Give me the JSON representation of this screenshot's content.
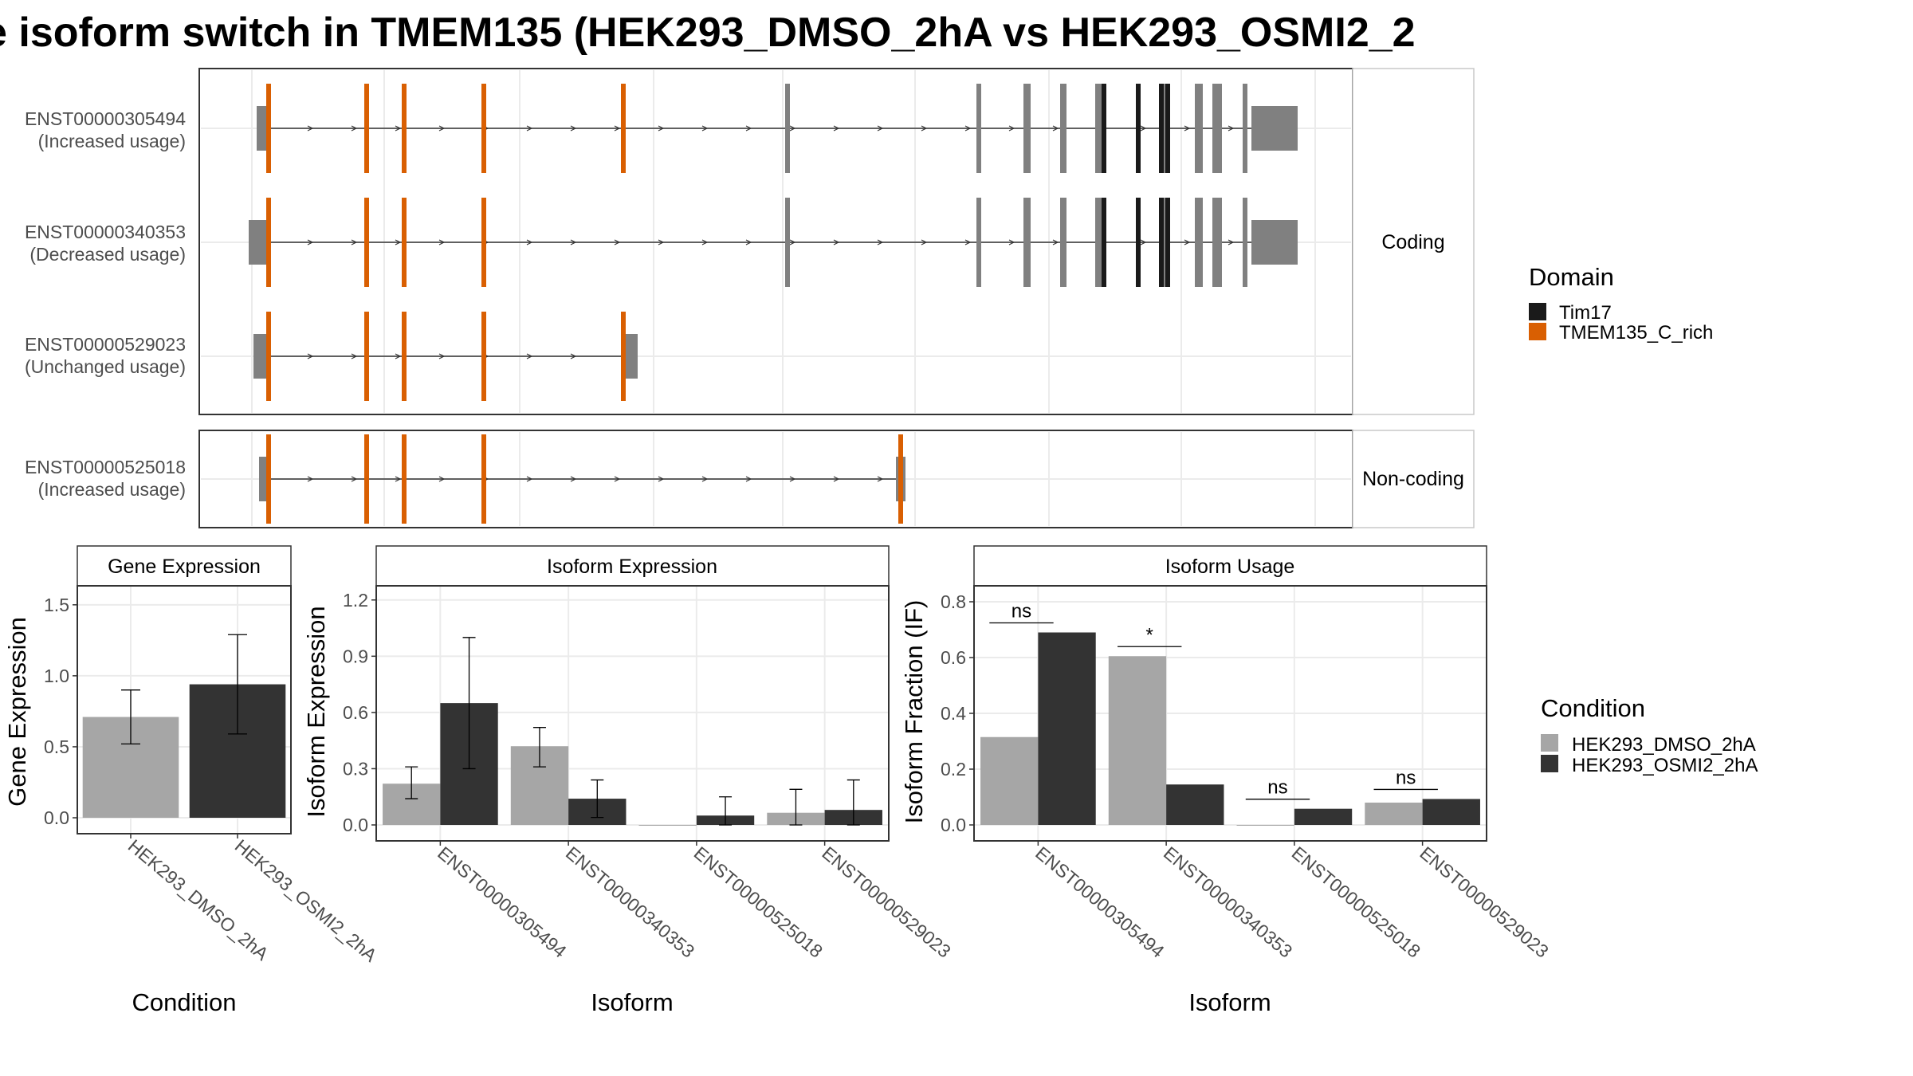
{
  "title": "e isoform switch in TMEM135 (HEK293_DMSO_2hA vs HEK293_OSMI2_2",
  "colors": {
    "exon": "#808080",
    "tim17": "#1a1a1a",
    "tmem_c_rich": "#d95f02",
    "dmso": "#a6a6a6",
    "osmi2": "#333333",
    "panel_border": "#333333",
    "strip_bg": "#ffffff",
    "grid": "#ebebeb"
  },
  "structure": {
    "coding_label": "Coding",
    "noncoding_label": "Non-coding",
    "transcripts": [
      {
        "id": "ENST00000305494",
        "usage": "(Increased usage)",
        "group": "coding"
      },
      {
        "id": "ENST00000340353",
        "usage": "(Decreased usage)",
        "group": "coding"
      },
      {
        "id": "ENST00000529023",
        "usage": "(Unchanged usage)",
        "group": "coding"
      },
      {
        "id": "ENST00000525018",
        "usage": "(Increased usage)",
        "group": "noncoding"
      }
    ],
    "legend_title": "Domain",
    "legend_items": [
      {
        "label": "Tim17",
        "color": "#1a1a1a"
      },
      {
        "label": "TMEM135_C_rich",
        "color": "#d95f02"
      }
    ]
  },
  "chart_data": [
    {
      "type": "bar",
      "title": "Gene Expression",
      "xlabel": "Condition",
      "ylabel": "Gene Expression",
      "ylim": [
        0,
        1.6
      ],
      "yticks": [
        "0.0",
        "0.5",
        "1.0",
        "1.5"
      ],
      "categories": [
        "HEK293_DMSO_2hA",
        "HEK293_OSMI2_2hA"
      ],
      "values": [
        0.71,
        0.94
      ],
      "err_low": [
        0.52,
        0.59
      ],
      "err_high": [
        0.9,
        1.29
      ]
    },
    {
      "type": "bar",
      "title": "Isoform Expression",
      "xlabel": "Isoform",
      "ylabel": "Isoform Expression",
      "ylim": [
        0,
        1.25
      ],
      "yticks": [
        "0.0",
        "0.3",
        "0.6",
        "0.9",
        "1.2"
      ],
      "categories": [
        "ENST00000305494",
        "ENST00000340353",
        "ENST00000525018",
        "ENST00000529023"
      ],
      "series": [
        {
          "name": "HEK293_DMSO_2hA",
          "values": [
            0.22,
            0.42,
            0.0,
            0.065
          ],
          "err_low": [
            0.14,
            0.31,
            0.0,
            0.0
          ],
          "err_high": [
            0.31,
            0.52,
            0.0,
            0.19
          ]
        },
        {
          "name": "HEK293_OSMI2_2hA",
          "values": [
            0.65,
            0.14,
            0.05,
            0.08
          ],
          "err_low": [
            0.3,
            0.04,
            0.0,
            0.0
          ],
          "err_high": [
            1.0,
            0.24,
            0.15,
            0.24
          ]
        }
      ]
    },
    {
      "type": "bar",
      "title": "Isoform Usage",
      "xlabel": "Isoform",
      "ylabel": "Isoform Fraction (IF)",
      "ylim": [
        0,
        0.84
      ],
      "yticks": [
        "0.0",
        "0.2",
        "0.4",
        "0.6",
        "0.8"
      ],
      "categories": [
        "ENST00000305494",
        "ENST00000340353",
        "ENST00000525018",
        "ENST00000529023"
      ],
      "series": [
        {
          "name": "HEK293_DMSO_2hA",
          "values": [
            0.315,
            0.605,
            0.0,
            0.08
          ]
        },
        {
          "name": "HEK293_OSMI2_2hA",
          "values": [
            0.69,
            0.145,
            0.058,
            0.093
          ]
        }
      ],
      "significance": [
        "ns",
        "*",
        "ns",
        "ns"
      ]
    }
  ],
  "condition_legend": {
    "title": "Condition",
    "items": [
      {
        "label": "HEK293_DMSO_2hA",
        "color": "#a6a6a6"
      },
      {
        "label": "HEK293_OSMI2_2hA",
        "color": "#333333"
      }
    ]
  }
}
